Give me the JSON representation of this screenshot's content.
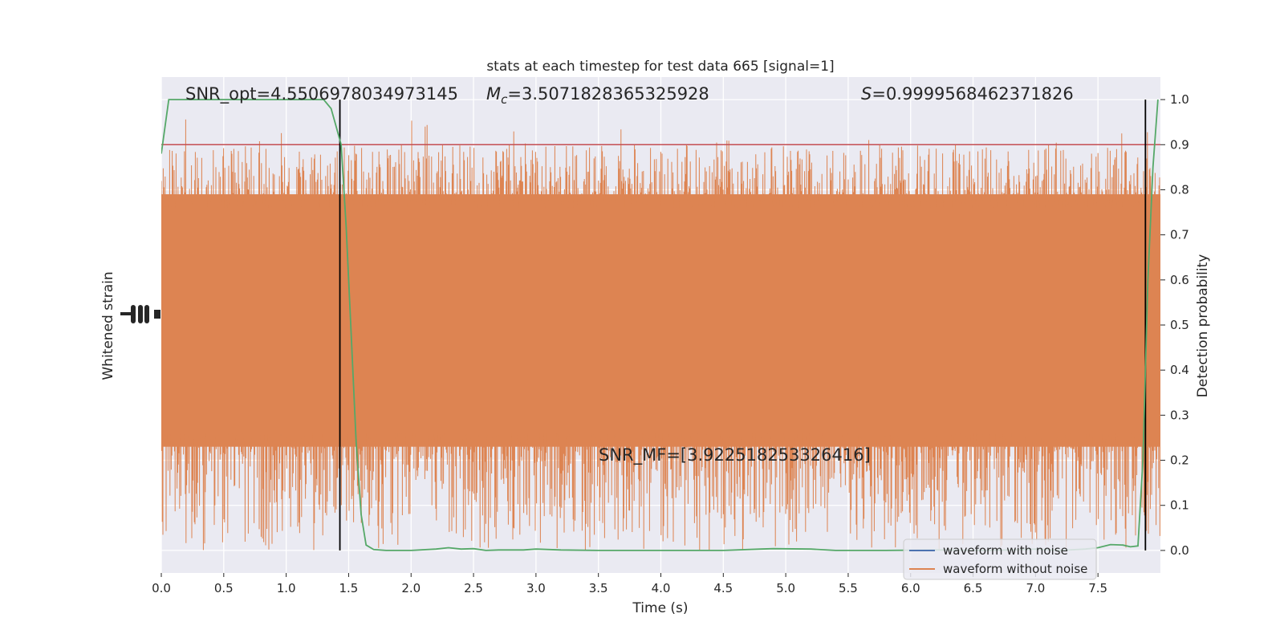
{
  "chart_data": {
    "type": "line",
    "title": "stats at each timestep for test data 665 [signal=1]",
    "xlabel": "Time (s)",
    "ylabel_left": "Whitened strain",
    "ylabel_right": "Detection probability",
    "xlim": [
      0.0,
      8.0
    ],
    "ylim_right": [
      -0.05,
      1.05
    ],
    "xticks": [
      "0.0",
      "0.5",
      "1.0",
      "1.5",
      "2.0",
      "2.5",
      "3.0",
      "3.5",
      "4.0",
      "4.5",
      "5.0",
      "5.5",
      "6.0",
      "6.5",
      "7.0",
      "7.5"
    ],
    "xtick_values": [
      0.0,
      0.5,
      1.0,
      1.5,
      2.0,
      2.5,
      3.0,
      3.5,
      4.0,
      4.5,
      5.0,
      5.5,
      6.0,
      6.5,
      7.0,
      7.5
    ],
    "yticks_right": [
      "0.0",
      "0.1",
      "0.2",
      "0.3",
      "0.4",
      "0.5",
      "0.6",
      "0.7",
      "0.8",
      "0.9",
      "1.0"
    ],
    "ytick_right_values": [
      0.0,
      0.1,
      0.2,
      0.3,
      0.4,
      0.5,
      0.6,
      0.7,
      0.8,
      0.9,
      1.0
    ],
    "grid": true,
    "legend_position": "lower-right",
    "legend": [
      {
        "name": "waveform with noise",
        "color": "#4c72b0"
      },
      {
        "name": "waveform without noise",
        "color": "#dd8452"
      }
    ],
    "annotations": {
      "snr_opt": "SNR_opt=4.5506978034973145",
      "mc_symbol": "M",
      "mc_sub": "c",
      "mc_value": "=3.5071828365325928",
      "s_symbol": "S",
      "s_value": "=0.9999568462371826",
      "snr_mf": "SNR_MF=[3.922518253326416]"
    },
    "threshold": {
      "value": 0.9,
      "color": "#c44e52"
    },
    "vertical_lines": [
      1.43,
      7.88
    ],
    "detection_probability": {
      "color": "#55a868",
      "x": [
        0.0,
        0.06,
        0.15,
        0.3,
        0.6,
        1.0,
        1.2,
        1.3,
        1.36,
        1.4,
        1.44,
        1.48,
        1.52,
        1.56,
        1.6,
        1.64,
        1.7,
        1.8,
        2.0,
        2.2,
        2.3,
        2.4,
        2.5,
        2.6,
        2.7,
        2.9,
        3.0,
        3.2,
        3.5,
        4.0,
        4.5,
        4.8,
        4.9,
        5.2,
        5.4,
        5.8,
        6.2,
        6.6,
        6.8,
        7.0,
        7.2,
        7.4,
        7.5,
        7.6,
        7.7,
        7.76,
        7.82,
        7.86,
        7.9,
        7.94,
        7.98
      ],
      "y": [
        0.88,
        1.0,
        1.0,
        1.0,
        1.0,
        1.0,
        1.0,
        1.0,
        0.98,
        0.94,
        0.9,
        0.72,
        0.48,
        0.24,
        0.08,
        0.012,
        0.002,
        0.0,
        0.0,
        0.003,
        0.006,
        0.003,
        0.004,
        0.0,
        0.001,
        0.001,
        0.003,
        0.001,
        0.0,
        0.0,
        0.0,
        0.003,
        0.004,
        0.003,
        0.0,
        0.0,
        0.001,
        0.0,
        0.001,
        0.003,
        0.0,
        0.003,
        0.006,
        0.013,
        0.012,
        0.008,
        0.01,
        0.2,
        0.6,
        0.85,
        1.0
      ]
    }
  }
}
